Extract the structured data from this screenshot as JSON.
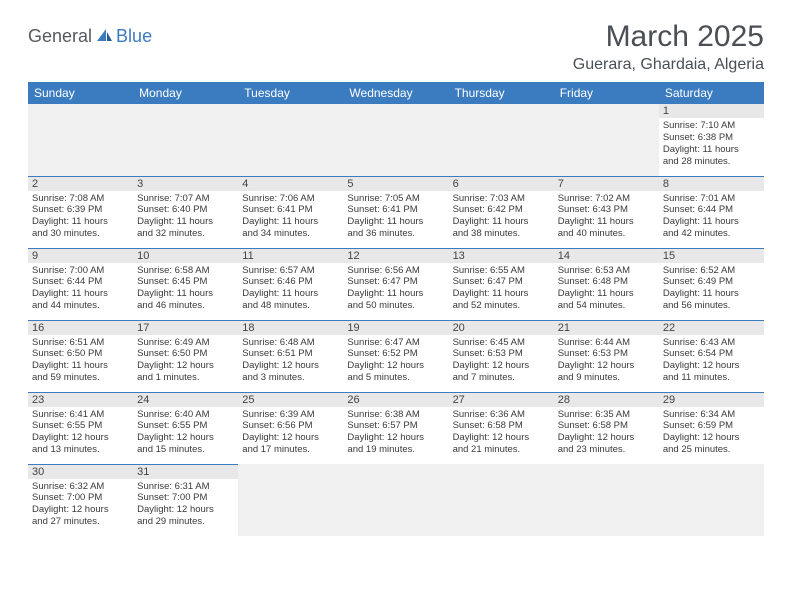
{
  "logo": {
    "text1": "General",
    "text2": "Blue"
  },
  "title": "March 2025",
  "location": "Guerara, Ghardaia, Algeria",
  "colors": {
    "header_bg": "#3b7bbf",
    "header_text": "#ffffff",
    "daynum_bg": "#e8e8e8",
    "empty_bg": "#f0f0f0",
    "border": "#3b7bbf",
    "title_color": "#4a4f55"
  },
  "day_headers": [
    "Sunday",
    "Monday",
    "Tuesday",
    "Wednesday",
    "Thursday",
    "Friday",
    "Saturday"
  ],
  "weeks": [
    [
      null,
      null,
      null,
      null,
      null,
      null,
      {
        "n": "1",
        "sunrise": "7:10 AM",
        "sunset": "6:38 PM",
        "day_h": "11",
        "day_m": "28"
      }
    ],
    [
      {
        "n": "2",
        "sunrise": "7:08 AM",
        "sunset": "6:39 PM",
        "day_h": "11",
        "day_m": "30"
      },
      {
        "n": "3",
        "sunrise": "7:07 AM",
        "sunset": "6:40 PM",
        "day_h": "11",
        "day_m": "32"
      },
      {
        "n": "4",
        "sunrise": "7:06 AM",
        "sunset": "6:41 PM",
        "day_h": "11",
        "day_m": "34"
      },
      {
        "n": "5",
        "sunrise": "7:05 AM",
        "sunset": "6:41 PM",
        "day_h": "11",
        "day_m": "36"
      },
      {
        "n": "6",
        "sunrise": "7:03 AM",
        "sunset": "6:42 PM",
        "day_h": "11",
        "day_m": "38"
      },
      {
        "n": "7",
        "sunrise": "7:02 AM",
        "sunset": "6:43 PM",
        "day_h": "11",
        "day_m": "40"
      },
      {
        "n": "8",
        "sunrise": "7:01 AM",
        "sunset": "6:44 PM",
        "day_h": "11",
        "day_m": "42"
      }
    ],
    [
      {
        "n": "9",
        "sunrise": "7:00 AM",
        "sunset": "6:44 PM",
        "day_h": "11",
        "day_m": "44"
      },
      {
        "n": "10",
        "sunrise": "6:58 AM",
        "sunset": "6:45 PM",
        "day_h": "11",
        "day_m": "46"
      },
      {
        "n": "11",
        "sunrise": "6:57 AM",
        "sunset": "6:46 PM",
        "day_h": "11",
        "day_m": "48"
      },
      {
        "n": "12",
        "sunrise": "6:56 AM",
        "sunset": "6:47 PM",
        "day_h": "11",
        "day_m": "50"
      },
      {
        "n": "13",
        "sunrise": "6:55 AM",
        "sunset": "6:47 PM",
        "day_h": "11",
        "day_m": "52"
      },
      {
        "n": "14",
        "sunrise": "6:53 AM",
        "sunset": "6:48 PM",
        "day_h": "11",
        "day_m": "54"
      },
      {
        "n": "15",
        "sunrise": "6:52 AM",
        "sunset": "6:49 PM",
        "day_h": "11",
        "day_m": "56"
      }
    ],
    [
      {
        "n": "16",
        "sunrise": "6:51 AM",
        "sunset": "6:50 PM",
        "day_h": "11",
        "day_m": "59"
      },
      {
        "n": "17",
        "sunrise": "6:49 AM",
        "sunset": "6:50 PM",
        "day_h": "12",
        "day_m": "1"
      },
      {
        "n": "18",
        "sunrise": "6:48 AM",
        "sunset": "6:51 PM",
        "day_h": "12",
        "day_m": "3"
      },
      {
        "n": "19",
        "sunrise": "6:47 AM",
        "sunset": "6:52 PM",
        "day_h": "12",
        "day_m": "5"
      },
      {
        "n": "20",
        "sunrise": "6:45 AM",
        "sunset": "6:53 PM",
        "day_h": "12",
        "day_m": "7"
      },
      {
        "n": "21",
        "sunrise": "6:44 AM",
        "sunset": "6:53 PM",
        "day_h": "12",
        "day_m": "9"
      },
      {
        "n": "22",
        "sunrise": "6:43 AM",
        "sunset": "6:54 PM",
        "day_h": "12",
        "day_m": "11"
      }
    ],
    [
      {
        "n": "23",
        "sunrise": "6:41 AM",
        "sunset": "6:55 PM",
        "day_h": "12",
        "day_m": "13"
      },
      {
        "n": "24",
        "sunrise": "6:40 AM",
        "sunset": "6:55 PM",
        "day_h": "12",
        "day_m": "15"
      },
      {
        "n": "25",
        "sunrise": "6:39 AM",
        "sunset": "6:56 PM",
        "day_h": "12",
        "day_m": "17"
      },
      {
        "n": "26",
        "sunrise": "6:38 AM",
        "sunset": "6:57 PM",
        "day_h": "12",
        "day_m": "19"
      },
      {
        "n": "27",
        "sunrise": "6:36 AM",
        "sunset": "6:58 PM",
        "day_h": "12",
        "day_m": "21"
      },
      {
        "n": "28",
        "sunrise": "6:35 AM",
        "sunset": "6:58 PM",
        "day_h": "12",
        "day_m": "23"
      },
      {
        "n": "29",
        "sunrise": "6:34 AM",
        "sunset": "6:59 PM",
        "day_h": "12",
        "day_m": "25"
      }
    ],
    [
      {
        "n": "30",
        "sunrise": "6:32 AM",
        "sunset": "7:00 PM",
        "day_h": "12",
        "day_m": "27"
      },
      {
        "n": "31",
        "sunrise": "6:31 AM",
        "sunset": "7:00 PM",
        "day_h": "12",
        "day_m": "29"
      },
      null,
      null,
      null,
      null,
      null
    ]
  ],
  "labels": {
    "sunrise": "Sunrise:",
    "sunset": "Sunset:",
    "daylight_prefix": "Daylight:",
    "hours_word": "hours",
    "and_word": "and",
    "minutes_word": "minutes."
  }
}
